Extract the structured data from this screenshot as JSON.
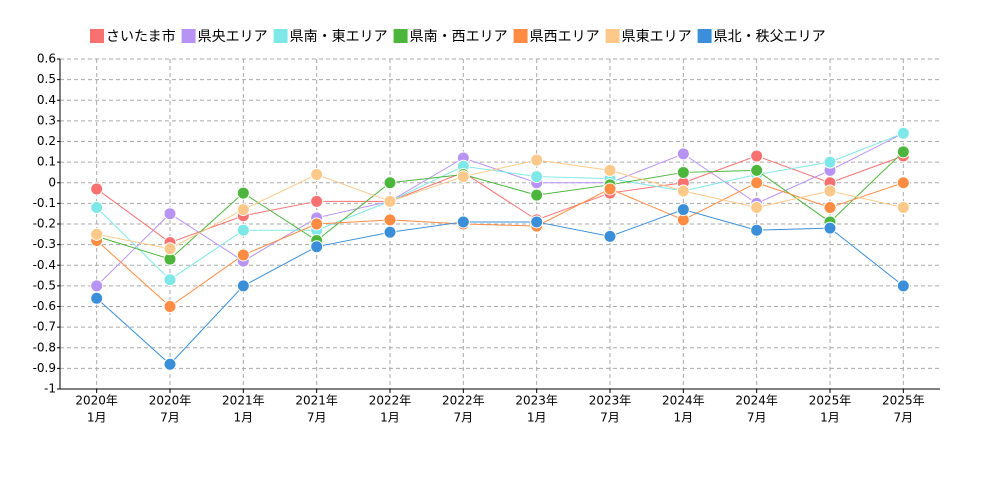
{
  "chart_data": {
    "type": "line",
    "categories": [
      [
        "2020年",
        "1月"
      ],
      [
        "2020年",
        "7月"
      ],
      [
        "2021年",
        "1月"
      ],
      [
        "2021年",
        "7月"
      ],
      [
        "2022年",
        "1月"
      ],
      [
        "2022年",
        "7月"
      ],
      [
        "2023年",
        "1月"
      ],
      [
        "2023年",
        "7月"
      ],
      [
        "2024年",
        "1月"
      ],
      [
        "2024年",
        "7月"
      ],
      [
        "2025年",
        "1月"
      ],
      [
        "2025年",
        "7月"
      ]
    ],
    "series": [
      {
        "name": "さいたま市",
        "color": "#f87171",
        "values": [
          -0.03,
          -0.29,
          -0.16,
          -0.09,
          -0.09,
          0.05,
          -0.18,
          -0.05,
          0.0,
          0.13,
          0.0,
          0.13
        ]
      },
      {
        "name": "県央エリア",
        "color": "#b794f4",
        "values": [
          -0.5,
          -0.15,
          -0.38,
          -0.17,
          -0.09,
          0.12,
          0.0,
          0.0,
          0.14,
          -0.1,
          0.06,
          0.24
        ]
      },
      {
        "name": "県南・東エリア",
        "color": "#7ee8e8",
        "values": [
          -0.12,
          -0.47,
          -0.23,
          -0.23,
          -0.09,
          0.08,
          0.03,
          0.02,
          -0.04,
          0.04,
          0.1,
          0.24
        ]
      },
      {
        "name": "県南・西エリア",
        "color": "#4cb63c",
        "values": [
          -0.26,
          -0.37,
          -0.05,
          -0.28,
          0.0,
          0.04,
          -0.06,
          -0.01,
          0.05,
          0.06,
          -0.19,
          0.15
        ]
      },
      {
        "name": "県西エリア",
        "color": "#ff8c42",
        "values": [
          -0.28,
          -0.6,
          -0.35,
          -0.2,
          -0.18,
          -0.2,
          -0.21,
          -0.03,
          -0.18,
          0.0,
          -0.12,
          0.0
        ]
      },
      {
        "name": "県東エリア",
        "color": "#fdc98a",
        "values": [
          -0.25,
          -0.32,
          -0.13,
          0.04,
          -0.09,
          0.03,
          0.11,
          0.06,
          -0.04,
          -0.12,
          -0.04,
          -0.12
        ]
      },
      {
        "name": "県北・秩父エリア",
        "color": "#3b8fd9",
        "values": [
          -0.56,
          -0.88,
          -0.5,
          -0.31,
          -0.24,
          -0.19,
          -0.19,
          -0.26,
          -0.13,
          -0.23,
          -0.22,
          -0.5
        ]
      }
    ],
    "ylim": [
      -1,
      0.6
    ],
    "yticks": [
      0.6,
      0.5,
      0.4,
      0.3,
      0.2,
      0.1,
      0,
      -0.1,
      -0.2,
      -0.3,
      -0.4,
      -0.5,
      -0.6,
      -0.7,
      -0.8,
      -0.9,
      -1
    ],
    "grid": true
  }
}
